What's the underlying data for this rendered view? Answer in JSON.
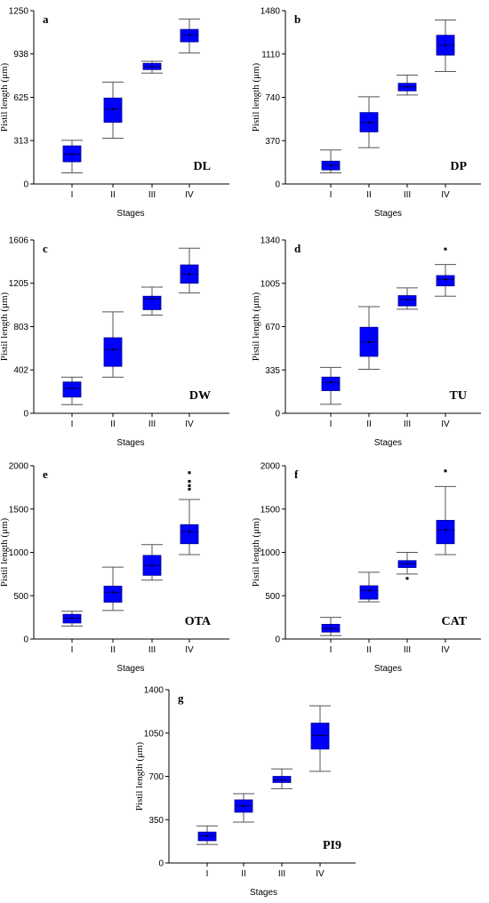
{
  "colors": {
    "box": "#0000ff",
    "axis": "#000000",
    "whisker": "#555555",
    "outlier": "#000000"
  },
  "chart_data": [
    {
      "type": "box",
      "panel": "a",
      "code": "DL",
      "xlabel": "Stages",
      "ylabel": "Pistil length (μm)",
      "ylim": [
        0,
        1250
      ],
      "yticks": [
        0,
        313,
        625,
        938,
        1250
      ],
      "categories": [
        "I",
        "II",
        "III",
        "IV"
      ],
      "boxes": [
        {
          "min": 80,
          "q1": 160,
          "median": 215,
          "q3": 275,
          "max": 315,
          "mean": 215,
          "outliers": []
        },
        {
          "min": 330,
          "q1": 445,
          "median": 540,
          "q3": 620,
          "max": 735,
          "mean": 540,
          "outliers": []
        },
        {
          "min": 800,
          "q1": 825,
          "median": 845,
          "q3": 870,
          "max": 885,
          "mean": 845,
          "outliers": []
        },
        {
          "min": 945,
          "q1": 1025,
          "median": 1075,
          "q3": 1115,
          "max": 1190,
          "mean": 1075,
          "outliers": []
        }
      ]
    },
    {
      "type": "box",
      "panel": "b",
      "code": "DP",
      "xlabel": "Stages",
      "ylabel": "Pistil length (μm)",
      "ylim": [
        0,
        1480
      ],
      "yticks": [
        0,
        370,
        740,
        1110,
        1480
      ],
      "categories": [
        "I",
        "II",
        "III",
        "IV"
      ],
      "boxes": [
        {
          "min": 95,
          "q1": 120,
          "median": 160,
          "q3": 195,
          "max": 290,
          "mean": 160,
          "outliers": []
        },
        {
          "min": 310,
          "q1": 445,
          "median": 525,
          "q3": 610,
          "max": 745,
          "mean": 525,
          "outliers": []
        },
        {
          "min": 760,
          "q1": 795,
          "median": 830,
          "q3": 860,
          "max": 930,
          "mean": 830,
          "outliers": []
        },
        {
          "min": 960,
          "q1": 1100,
          "median": 1185,
          "q3": 1270,
          "max": 1400,
          "mean": 1185,
          "outliers": []
        }
      ]
    },
    {
      "type": "box",
      "panel": "c",
      "code": "DW",
      "xlabel": "Stages",
      "ylabel": "Pistil length (μm)",
      "ylim": [
        0,
        1606
      ],
      "yticks": [
        0,
        402,
        803,
        1205,
        1606
      ],
      "categories": [
        "I",
        "II",
        "III",
        "IV"
      ],
      "boxes": [
        {
          "min": 80,
          "q1": 150,
          "median": 230,
          "q3": 290,
          "max": 335,
          "mean": 230,
          "outliers": []
        },
        {
          "min": 335,
          "q1": 435,
          "median": 590,
          "q3": 700,
          "max": 940,
          "mean": 590,
          "outliers": []
        },
        {
          "min": 910,
          "q1": 960,
          "median": 1060,
          "q3": 1085,
          "max": 1170,
          "mean": 1060,
          "outliers": []
        },
        {
          "min": 1115,
          "q1": 1205,
          "median": 1290,
          "q3": 1375,
          "max": 1530,
          "mean": 1290,
          "outliers": []
        }
      ]
    },
    {
      "type": "box",
      "panel": "d",
      "code": "TU",
      "xlabel": "Stages",
      "ylabel": "Pistil length (μm)",
      "ylim": [
        0,
        1340
      ],
      "yticks": [
        0,
        335,
        670,
        1005,
        1340
      ],
      "categories": [
        "I",
        "II",
        "III",
        "IV"
      ],
      "boxes": [
        {
          "min": 70,
          "q1": 175,
          "median": 240,
          "q3": 280,
          "max": 355,
          "mean": 240,
          "outliers": []
        },
        {
          "min": 340,
          "q1": 440,
          "median": 550,
          "q3": 665,
          "max": 825,
          "mean": 550,
          "outliers": []
        },
        {
          "min": 805,
          "q1": 830,
          "median": 880,
          "q3": 910,
          "max": 970,
          "mean": 880,
          "outliers": []
        },
        {
          "min": 905,
          "q1": 985,
          "median": 1035,
          "q3": 1065,
          "max": 1150,
          "mean": 1035,
          "outliers": [
            1270
          ]
        }
      ]
    },
    {
      "type": "box",
      "panel": "e",
      "code": "OTA",
      "xlabel": "Stages",
      "ylabel": "Pistil length (μm)",
      "ylim": [
        0,
        2000
      ],
      "yticks": [
        0,
        500,
        1000,
        1500,
        2000
      ],
      "categories": [
        "I",
        "II",
        "III",
        "IV"
      ],
      "boxes": [
        {
          "min": 150,
          "q1": 185,
          "median": 240,
          "q3": 285,
          "max": 320,
          "mean": 240,
          "outliers": []
        },
        {
          "min": 330,
          "q1": 425,
          "median": 540,
          "q3": 610,
          "max": 830,
          "mean": 540,
          "outliers": []
        },
        {
          "min": 680,
          "q1": 735,
          "median": 850,
          "q3": 965,
          "max": 1090,
          "mean": 850,
          "outliers": []
        },
        {
          "min": 975,
          "q1": 1100,
          "median": 1240,
          "q3": 1320,
          "max": 1610,
          "mean": 1240,
          "outliers": [
            1730,
            1770,
            1820,
            1920
          ]
        }
      ]
    },
    {
      "type": "box",
      "panel": "f",
      "code": "CAT",
      "xlabel": "Stages",
      "ylabel": "Pistil length (μm)",
      "ylim": [
        0,
        2000
      ],
      "yticks": [
        0,
        500,
        1000,
        1500,
        2000
      ],
      "categories": [
        "I",
        "II",
        "III",
        "IV"
      ],
      "boxes": [
        {
          "min": 40,
          "q1": 80,
          "median": 120,
          "q3": 170,
          "max": 250,
          "mean": 120,
          "outliers": []
        },
        {
          "min": 430,
          "q1": 460,
          "median": 560,
          "q3": 615,
          "max": 770,
          "mean": 560,
          "outliers": []
        },
        {
          "min": 750,
          "q1": 825,
          "median": 870,
          "q3": 905,
          "max": 1000,
          "mean": 870,
          "outliers": [
            700
          ]
        },
        {
          "min": 975,
          "q1": 1100,
          "median": 1260,
          "q3": 1370,
          "max": 1760,
          "mean": 1260,
          "outliers": [
            1940
          ]
        }
      ]
    },
    {
      "type": "box",
      "panel": "g",
      "code": "PI9",
      "xlabel": "Stages",
      "ylabel": "Pistil length (μm)",
      "ylim": [
        0,
        1400
      ],
      "yticks": [
        0,
        350,
        700,
        1050,
        1400
      ],
      "categories": [
        "I",
        "II",
        "III",
        "IV"
      ],
      "boxes": [
        {
          "min": 150,
          "q1": 180,
          "median": 220,
          "q3": 250,
          "max": 300,
          "mean": 220,
          "outliers": []
        },
        {
          "min": 330,
          "q1": 410,
          "median": 460,
          "q3": 510,
          "max": 560,
          "mean": 460,
          "outliers": []
        },
        {
          "min": 600,
          "q1": 650,
          "median": 670,
          "q3": 700,
          "max": 760,
          "mean": 670,
          "outliers": []
        },
        {
          "min": 740,
          "q1": 920,
          "median": 1030,
          "q3": 1130,
          "max": 1270,
          "mean": 1030,
          "outliers": []
        }
      ]
    }
  ]
}
